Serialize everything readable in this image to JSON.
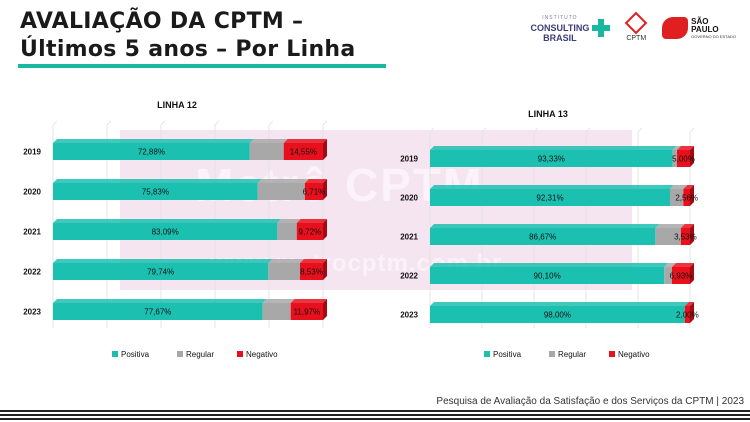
{
  "header": {
    "title_line1": "AVALIAÇÃO DA CPTM –",
    "title_line2": "Últimos 5 anos – Por Linha"
  },
  "logos": {
    "ic_small": "INSTITUTO",
    "ic_main": "CONSULTING",
    "ic_sub": "BRASIL",
    "cptm": "CPTM",
    "sp_line1": "SÃO",
    "sp_line2": "PAULO",
    "sp_sub": "GOVERNO DO ESTADO"
  },
  "watermark": {
    "text": "Metrô CPTM",
    "url": "www.metrocptm.com.br"
  },
  "chart_data": [
    {
      "type": "bar",
      "stacked": true,
      "orientation": "horizontal",
      "title": "LINHA 12",
      "categories": [
        "2019",
        "2020",
        "2021",
        "2022",
        "2023"
      ],
      "series": [
        {
          "name": "Positiva",
          "values": [
            72.88,
            75.83,
            83.09,
            79.74,
            77.67
          ],
          "labels": [
            "72,88%",
            "75,83%",
            "83,09%",
            "79,74%",
            "77,67%"
          ]
        },
        {
          "name": "Regular",
          "values": [
            12.57,
            17.46,
            7.19,
            11.73,
            10.36
          ],
          "labels": [
            "",
            "",
            "",
            "",
            ""
          ]
        },
        {
          "name": "Negativo",
          "values": [
            14.55,
            6.71,
            9.72,
            8.53,
            11.97
          ],
          "labels": [
            "14,55%",
            "6,71%",
            "9,72%",
            "8,53%",
            "11,97%"
          ]
        }
      ],
      "xlim": [
        0,
        100
      ],
      "colors": {
        "Positiva": "#1cc0b0",
        "Regular": "#a8a8a8",
        "Negativo": "#e8101c"
      },
      "legend": "bottom"
    },
    {
      "type": "bar",
      "stacked": true,
      "orientation": "horizontal",
      "title": "LINHA 13",
      "categories": [
        "2019",
        "2020",
        "2021",
        "2022",
        "2023"
      ],
      "series": [
        {
          "name": "Positiva",
          "values": [
            93.33,
            92.31,
            86.67,
            90.1,
            98.0
          ],
          "labels": [
            "93,33%",
            "92,31%",
            "86,67%",
            "90,10%",
            "98,00%"
          ]
        },
        {
          "name": "Regular",
          "values": [
            1.67,
            5.13,
            9.8,
            2.97,
            0.0
          ],
          "labels": [
            "",
            "",
            "",
            "",
            ""
          ]
        },
        {
          "name": "Negativo",
          "values": [
            5.0,
            2.56,
            3.53,
            6.93,
            2.0
          ],
          "labels": [
            "5,00%",
            "2,56%",
            "3,53%",
            "6,93%",
            "2,00%"
          ]
        }
      ],
      "xlim": [
        0,
        100
      ],
      "colors": {
        "Positiva": "#1cc0b0",
        "Regular": "#a8a8a8",
        "Negativo": "#e8101c"
      },
      "legend": "bottom"
    }
  ],
  "footer": {
    "text": "Pesquisa de Avaliação da Satisfação e dos Serviços da CPTM | 2023"
  }
}
